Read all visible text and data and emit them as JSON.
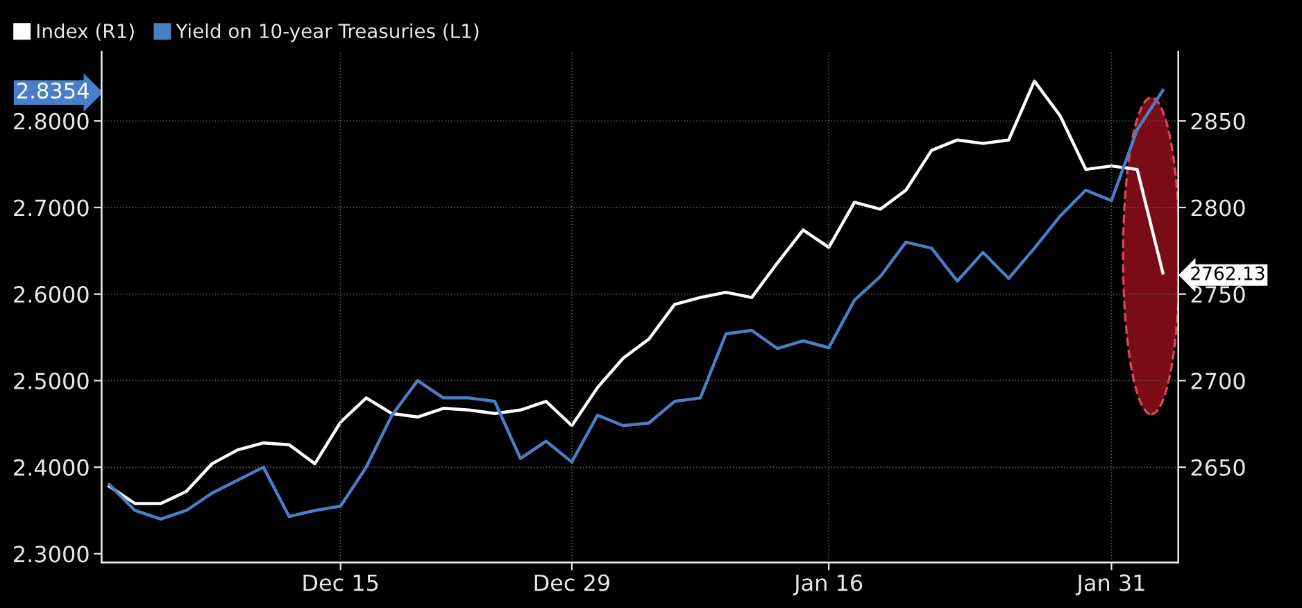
{
  "chart_data": {
    "type": "line",
    "categories": [
      null,
      null,
      null,
      null,
      null,
      null,
      null,
      null,
      null,
      "Dec 15",
      null,
      null,
      null,
      null,
      null,
      null,
      null,
      null,
      "Dec 29",
      null,
      null,
      null,
      null,
      null,
      null,
      null,
      null,
      null,
      "Jan 16",
      null,
      null,
      null,
      null,
      null,
      null,
      null,
      null,
      null,
      null,
      "Jan 31",
      null,
      null
    ],
    "series": [
      {
        "name": "Index (R1)",
        "color": "#ffffff",
        "axis": "y2",
        "values": [
          2639,
          2629,
          2629,
          2636,
          2652,
          2660,
          2664,
          2663,
          2652,
          2676,
          2690,
          2681,
          2679,
          2684,
          2683,
          2681,
          2683,
          2688,
          2674,
          2696,
          2713,
          2724,
          2744,
          2748,
          2751,
          2748,
          2768,
          2787,
          2777,
          2803,
          2799,
          2810,
          2833,
          2839,
          2837,
          2839,
          2873,
          2853,
          2822,
          2824,
          2822,
          2762.13
        ]
      },
      {
        "name": "Yield on 10-year Treasuries (L1)",
        "color": "#4a7fc8",
        "values": [
          2.38,
          2.35,
          2.34,
          2.35,
          2.37,
          2.385,
          2.4,
          2.343,
          2.35,
          2.355,
          2.4,
          2.46,
          2.5,
          2.48,
          2.48,
          2.476,
          2.41,
          2.43,
          2.406,
          2.46,
          2.448,
          2.451,
          2.476,
          2.48,
          2.554,
          2.558,
          2.537,
          2.546,
          2.538,
          2.593,
          2.62,
          2.66,
          2.653,
          2.615,
          2.648,
          2.618,
          2.653,
          2.69,
          2.72,
          2.708,
          2.79,
          2.8354
        ]
      }
    ],
    "ylim": [
      2.29,
      2.88
    ],
    "yticks": [
      {
        "value": 2.3,
        "label": "2.3000"
      },
      {
        "value": 2.4,
        "label": "2.4000"
      },
      {
        "value": 2.5,
        "label": "2.5000"
      },
      {
        "value": 2.6,
        "label": "2.6000"
      },
      {
        "value": 2.7,
        "label": "2.7000"
      },
      {
        "value": 2.8,
        "label": "2.8000"
      },
      2.8354
    ],
    "y2lim": [
      2595,
      2890
    ],
    "y2ticks": [
      2650,
      2700,
      2750,
      2762.13,
      2800,
      2850
    ],
    "grid": true,
    "legend": "top left",
    "marker": "none",
    "line_style": "solid"
  }
}
